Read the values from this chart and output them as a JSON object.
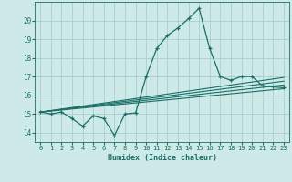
{
  "xlabel": "Humidex (Indice chaleur)",
  "bg_color": "#ceeae8",
  "grid_color": "#aacfcd",
  "line_color": "#1a6e65",
  "xlim": [
    -0.5,
    23.5
  ],
  "ylim": [
    13.5,
    21.0
  ],
  "xticks": [
    0,
    1,
    2,
    3,
    4,
    5,
    6,
    7,
    8,
    9,
    10,
    11,
    12,
    13,
    14,
    15,
    16,
    17,
    18,
    19,
    20,
    21,
    22,
    23
  ],
  "yticks": [
    14,
    15,
    16,
    17,
    18,
    19,
    20
  ],
  "main_x": [
    0,
    1,
    2,
    3,
    4,
    5,
    6,
    7,
    8,
    9,
    10,
    11,
    12,
    13,
    14,
    15,
    16,
    17,
    18,
    19,
    20,
    21,
    22,
    23
  ],
  "main_y": [
    15.1,
    15.0,
    15.1,
    14.75,
    14.35,
    14.9,
    14.75,
    13.85,
    15.0,
    15.05,
    17.0,
    18.5,
    19.2,
    19.6,
    20.1,
    20.65,
    18.5,
    17.0,
    16.8,
    17.0,
    17.0,
    16.5,
    16.45,
    16.4
  ],
  "trend1_x": [
    0,
    23
  ],
  "trend1_y": [
    15.1,
    16.35
  ],
  "trend2_x": [
    0,
    23
  ],
  "trend2_y": [
    15.1,
    16.55
  ],
  "trend3_x": [
    0,
    23
  ],
  "trend3_y": [
    15.1,
    16.75
  ],
  "trend4_x": [
    0,
    23
  ],
  "trend4_y": [
    15.1,
    16.95
  ]
}
